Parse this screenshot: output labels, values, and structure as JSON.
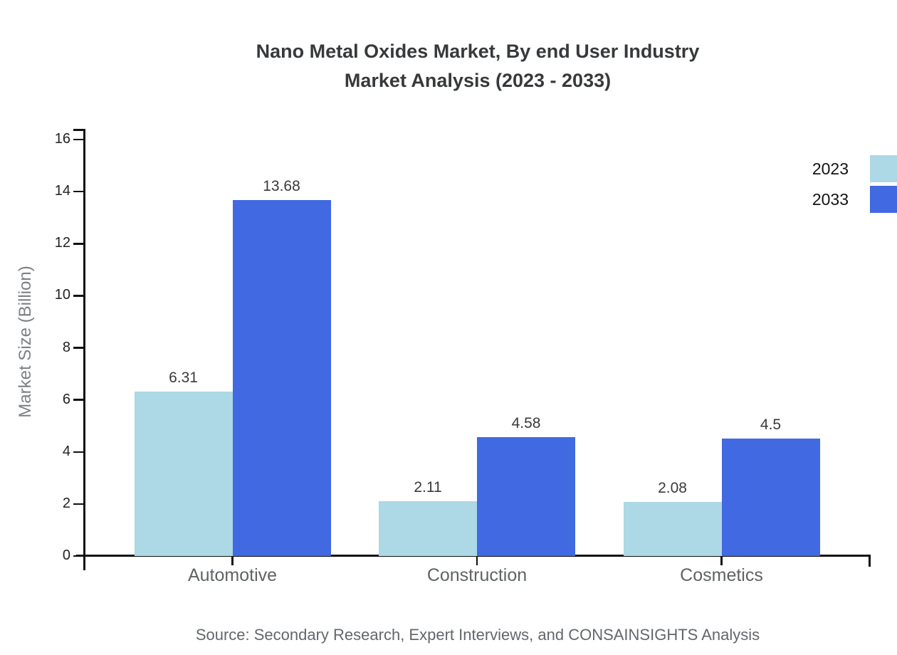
{
  "title": {
    "line1": "Nano Metal Oxides Market, By end User Industry",
    "line2": "Market Analysis (2023 - 2033)"
  },
  "source": "Source: Secondary Research, Expert Interviews, and CONSAINSIGHTS Analysis",
  "chart_data": {
    "type": "bar",
    "title": "Nano Metal Oxides Market, By end User Industry Market Analysis (2023 - 2033)",
    "categories": [
      "Automotive",
      "Construction",
      "Cosmetics"
    ],
    "series": [
      {
        "name": "2023",
        "color": "#ADD8E6",
        "values": [
          6.31,
          2.11,
          2.08
        ]
      },
      {
        "name": "2033",
        "color": "#4169E1",
        "values": [
          13.68,
          4.58,
          4.5
        ]
      }
    ],
    "xlabel": "",
    "ylabel": "Market Size (Billion)",
    "ylim": [
      0,
      16
    ],
    "yticks": [
      0,
      2,
      4,
      6,
      8,
      10,
      12,
      14,
      16
    ],
    "grid": false,
    "value_labels": true,
    "legend_position": "top-right",
    "axis_color": "#111111",
    "background_color": "#ffffff"
  }
}
